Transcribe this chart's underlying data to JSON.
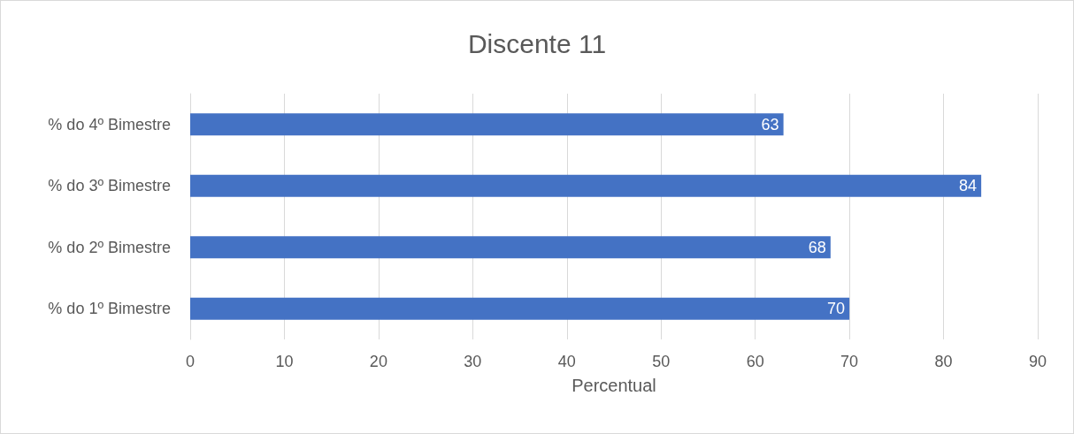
{
  "chart_data": {
    "type": "bar",
    "title": "Discente 11",
    "xlabel": "Percentual",
    "orientation": "horizontal",
    "categories": [
      "% do 4º Bimestre",
      "% do 3º Bimestre",
      "% do 2º Bimestre",
      "% do 1º Bimestre"
    ],
    "values": [
      63,
      84,
      68,
      70
    ],
    "color": "#4472c4",
    "xlim": [
      0,
      90
    ],
    "xticks": [
      0,
      10,
      20,
      30,
      40,
      50,
      60,
      70,
      80,
      90
    ],
    "grid": "x",
    "data_labels": true
  }
}
